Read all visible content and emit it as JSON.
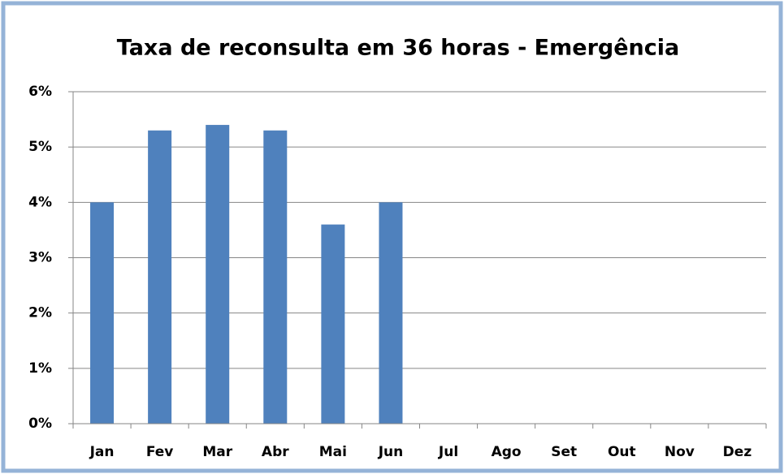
{
  "chart_data": {
    "type": "bar",
    "title": "Taxa de reconsulta em 36 horas - Emergência",
    "categories": [
      "Jan",
      "Fev",
      "Mar",
      "Abr",
      "Mai",
      "Jun",
      "Jul",
      "Ago",
      "Set",
      "Out",
      "Nov",
      "Dez"
    ],
    "values": [
      4,
      5.3,
      5.4,
      5.3,
      3.6,
      4,
      null,
      null,
      null,
      null,
      null,
      null
    ],
    "color": "#4f81bd",
    "ylim": [
      0,
      6
    ],
    "yticks": [
      {
        "value": 0,
        "label": "0%"
      },
      {
        "value": 1,
        "label": "1%"
      },
      {
        "value": 2,
        "label": "2%"
      },
      {
        "value": 3,
        "label": "3%"
      },
      {
        "value": 4,
        "label": "4%"
      },
      {
        "value": 5,
        "label": "5%"
      },
      {
        "value": 6,
        "label": "6%"
      }
    ],
    "grid": true
  }
}
